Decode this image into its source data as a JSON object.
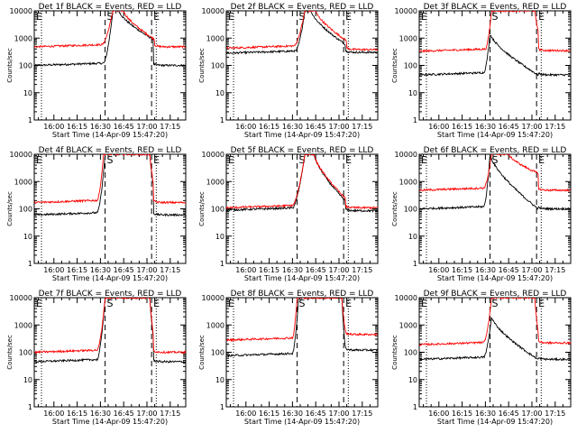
{
  "figure": {
    "x_axis_title": "Start Time (14-Apr-09 15:47:20)",
    "y_axis_title": "Counts/sec",
    "x_tick_labels": [
      "16:00",
      "16:15",
      "16:30",
      "16:45",
      "17:00",
      "17:15"
    ],
    "y_tick_labels": [
      "1",
      "10",
      "100",
      "1000",
      "10000"
    ],
    "start_marker": "S",
    "end_marker": "E",
    "colors": {
      "events": "#000000",
      "lld": "#ff0000",
      "background": "#ffffff"
    }
  },
  "chart_data": [
    {
      "type": "line",
      "title": "Det 1f BLACK = Events, RED = LLD",
      "xlabel": "Start Time (14-Apr-09 15:47:20)",
      "ylabel": "Counts/sec",
      "xlim": [
        "15:47:20",
        "17:25"
      ],
      "ylim": [
        1,
        10000
      ],
      "y_scale": "log",
      "x_ticks": [
        "16:00",
        "16:15",
        "16:30",
        "16:45",
        "17:00",
        "17:15"
      ],
      "dotted_lines": [
        "15:52",
        "17:06"
      ],
      "dashed_lines": [
        "16:33",
        "17:03"
      ],
      "series": [
        {
          "name": "Events",
          "color": "#000000",
          "base": 100,
          "peak": 10000,
          "rise_start": "16:32",
          "peak_time": "16:38",
          "peak_end": "16:42",
          "tail": 900,
          "tail_end": "17:04",
          "after": 100
        },
        {
          "name": "LLD",
          "color": "#ff0000",
          "base": 480,
          "peak": 10000,
          "rise_start": "16:31",
          "peak_time": "16:38",
          "peak_end": "16:45",
          "tail": 900,
          "tail_end": "17:05",
          "after": 480
        }
      ]
    },
    {
      "type": "line",
      "title": "Det 2f BLACK = Events, RED = LLD",
      "xlabel": "Start Time (14-Apr-09 15:47:20)",
      "ylabel": "Counts/sec",
      "xlim": [
        "15:47:20",
        "17:25"
      ],
      "ylim": [
        1,
        10000
      ],
      "y_scale": "log",
      "x_ticks": [
        "16:00",
        "16:15",
        "16:30",
        "16:45",
        "17:00",
        "17:15"
      ],
      "dotted_lines": [
        "15:52",
        "17:06"
      ],
      "dashed_lines": [
        "16:33",
        "17:03"
      ],
      "series": [
        {
          "name": "Events",
          "color": "#000000",
          "base": 280,
          "peak": 10000,
          "rise_start": "16:32",
          "peak_time": "16:38",
          "peak_end": "16:42",
          "tail": 600,
          "tail_end": "17:04",
          "after": 300
        },
        {
          "name": "LLD",
          "color": "#ff0000",
          "base": 430,
          "peak": 10000,
          "rise_start": "16:31",
          "peak_time": "16:38",
          "peak_end": "16:45",
          "tail": 800,
          "tail_end": "17:05",
          "after": 380
        }
      ]
    },
    {
      "type": "line",
      "title": "Det 3f BLACK = Events, RED = LLD",
      "xlabel": "Start Time (14-Apr-09 15:47:20)",
      "ylabel": "Counts/sec",
      "xlim": [
        "15:47:20",
        "17:25"
      ],
      "ylim": [
        1,
        10000
      ],
      "y_scale": "log",
      "x_ticks": [
        "16:00",
        "16:15",
        "16:30",
        "16:45",
        "17:00",
        "17:15"
      ],
      "dotted_lines": [
        "15:52",
        "17:06"
      ],
      "dashed_lines": [
        "16:33",
        "17:03"
      ],
      "series": [
        {
          "name": "Events",
          "color": "#000000",
          "base": 45,
          "peak": 1500,
          "rise_start": "16:29",
          "peak_time": "16:33",
          "peak_end": "16:33",
          "tail": 45,
          "tail_end": "17:04",
          "after": 45
        },
        {
          "name": "LLD",
          "color": "#ff0000",
          "base": 330,
          "peak": 10000,
          "rise_start": "16:30",
          "peak_time": "16:34",
          "peak_end": "17:02",
          "tail": 2000,
          "tail_end": "17:04",
          "after": 350
        }
      ]
    },
    {
      "type": "line",
      "title": "Det 4f BLACK = Events, RED = LLD",
      "xlabel": "Start Time (14-Apr-09 15:47:20)",
      "ylabel": "Counts/sec",
      "xlim": [
        "15:47:20",
        "17:25"
      ],
      "ylim": [
        1,
        10000
      ],
      "y_scale": "log",
      "x_ticks": [
        "16:00",
        "16:15",
        "16:30",
        "16:45",
        "17:00",
        "17:15"
      ],
      "dotted_lines": [
        "15:52",
        "17:06"
      ],
      "dashed_lines": [
        "16:33",
        "17:03"
      ],
      "series": [
        {
          "name": "Events",
          "color": "#000000",
          "base": 60,
          "peak": 10000,
          "rise_start": "16:28",
          "peak_time": "16:33",
          "peak_end": "17:02",
          "tail": 800,
          "tail_end": "17:04",
          "after": 60
        },
        {
          "name": "LLD",
          "color": "#ff0000",
          "base": 170,
          "peak": 10000,
          "rise_start": "16:28",
          "peak_time": "16:32",
          "peak_end": "17:02",
          "tail": 1000,
          "tail_end": "17:04",
          "after": 170
        }
      ]
    },
    {
      "type": "line",
      "title": "Det 5f BLACK = Events, RED = LLD",
      "xlabel": "Start Time (14-Apr-09 15:47:20)",
      "ylabel": "Counts/sec",
      "xlim": [
        "15:47:20",
        "17:25"
      ],
      "ylim": [
        1,
        10000
      ],
      "y_scale": "log",
      "x_ticks": [
        "16:00",
        "16:15",
        "16:30",
        "16:45",
        "17:00",
        "17:15"
      ],
      "dotted_lines": [
        "15:52",
        "17:06"
      ],
      "dashed_lines": [
        "16:33",
        "17:03"
      ],
      "series": [
        {
          "name": "Events",
          "color": "#000000",
          "base": 90,
          "peak": 10000,
          "rise_start": "16:30",
          "peak_time": "16:38",
          "peak_end": "16:44",
          "tail": 200,
          "tail_end": "17:04",
          "after": 85
        },
        {
          "name": "LLD",
          "color": "#ff0000",
          "base": 110,
          "peak": 10000,
          "rise_start": "16:30",
          "peak_time": "16:38",
          "peak_end": "16:44",
          "tail": 250,
          "tail_end": "17:04",
          "after": 110
        }
      ]
    },
    {
      "type": "line",
      "title": "Det 6f BLACK = Events, RED = LLD",
      "xlabel": "Start Time (14-Apr-09 15:47:20)",
      "ylabel": "Counts/sec",
      "xlim": [
        "15:47:20",
        "17:25"
      ],
      "ylim": [
        1,
        10000
      ],
      "y_scale": "log",
      "x_ticks": [
        "16:00",
        "16:15",
        "16:30",
        "16:45",
        "17:00",
        "17:15"
      ],
      "dotted_lines": [
        "15:52",
        "17:06"
      ],
      "dashed_lines": [
        "16:33",
        "17:03"
      ],
      "series": [
        {
          "name": "Events",
          "color": "#000000",
          "base": 100,
          "peak": 10000,
          "rise_start": "16:29",
          "peak_time": "16:33",
          "peak_end": "16:33",
          "tail": 100,
          "tail_end": "17:04",
          "after": 100
        },
        {
          "name": "LLD",
          "color": "#ff0000",
          "base": 480,
          "peak": 10000,
          "rise_start": "16:29",
          "peak_time": "16:34",
          "peak_end": "16:45",
          "tail": 2000,
          "tail_end": "17:04",
          "after": 480
        }
      ]
    },
    {
      "type": "line",
      "title": "Det 7f BLACK = Events, RED = LLD",
      "xlabel": "Start Time (14-Apr-09 15:47:20)",
      "ylabel": "Counts/sec",
      "xlim": [
        "15:47:20",
        "17:25"
      ],
      "ylim": [
        1,
        10000
      ],
      "y_scale": "log",
      "x_ticks": [
        "16:00",
        "16:15",
        "16:30",
        "16:45",
        "17:00",
        "17:15"
      ],
      "dotted_lines": [
        "15:52",
        "17:06"
      ],
      "dashed_lines": [
        "16:33",
        "17:03"
      ],
      "series": [
        {
          "name": "Events",
          "color": "#000000",
          "base": 45,
          "peak": 10000,
          "rise_start": "16:28",
          "peak_time": "16:33",
          "peak_end": "17:02",
          "tail": 400,
          "tail_end": "17:04",
          "after": 45
        },
        {
          "name": "LLD",
          "color": "#ff0000",
          "base": 100,
          "peak": 10000,
          "rise_start": "16:28",
          "peak_time": "16:33",
          "peak_end": "17:02",
          "tail": 500,
          "tail_end": "17:04",
          "after": 100
        }
      ]
    },
    {
      "type": "line",
      "title": "Det 8f BLACK = Events, RED = LLD",
      "xlabel": "Start Time (14-Apr-09 15:47:20)",
      "ylabel": "Counts/sec",
      "xlim": [
        "15:47:20",
        "17:25"
      ],
      "ylim": [
        1,
        10000
      ],
      "y_scale": "log",
      "x_ticks": [
        "16:00",
        "16:15",
        "16:30",
        "16:45",
        "17:00",
        "17:15"
      ],
      "dotted_lines": [
        "15:52",
        "17:06"
      ],
      "dashed_lines": [
        "16:33",
        "17:03"
      ],
      "series": [
        {
          "name": "Events",
          "color": "#000000",
          "base": 75,
          "peak": 10000,
          "rise_start": "16:30",
          "peak_time": "16:34",
          "peak_end": "17:02",
          "tail": 160,
          "tail_end": "17:04",
          "after": 120
        },
        {
          "name": "LLD",
          "color": "#ff0000",
          "base": 280,
          "peak": 10000,
          "rise_start": "16:30",
          "peak_time": "16:33",
          "peak_end": "17:02",
          "tail": 700,
          "tail_end": "17:04",
          "after": 450
        }
      ]
    },
    {
      "type": "line",
      "title": "Det 9f BLACK = Events, RED = LLD",
      "xlabel": "Start Time (14-Apr-09 15:47:20)",
      "ylabel": "Counts/sec",
      "xlim": [
        "15:47:20",
        "17:25"
      ],
      "ylim": [
        1,
        10000
      ],
      "y_scale": "log",
      "x_ticks": [
        "16:00",
        "16:15",
        "16:30",
        "16:45",
        "17:00",
        "17:15"
      ],
      "dotted_lines": [
        "15:52",
        "17:06"
      ],
      "dashed_lines": [
        "16:33",
        "17:03"
      ],
      "series": [
        {
          "name": "Events",
          "color": "#000000",
          "base": 55,
          "peak": 2000,
          "rise_start": "16:29",
          "peak_time": "16:34",
          "peak_end": "16:34",
          "tail": 55,
          "tail_end": "17:04",
          "after": 55
        },
        {
          "name": "LLD",
          "color": "#ff0000",
          "base": 190,
          "peak": 10000,
          "rise_start": "16:29",
          "peak_time": "16:34",
          "peak_end": "17:02",
          "tail": 600,
          "tail_end": "17:04",
          "after": 220
        }
      ]
    }
  ]
}
